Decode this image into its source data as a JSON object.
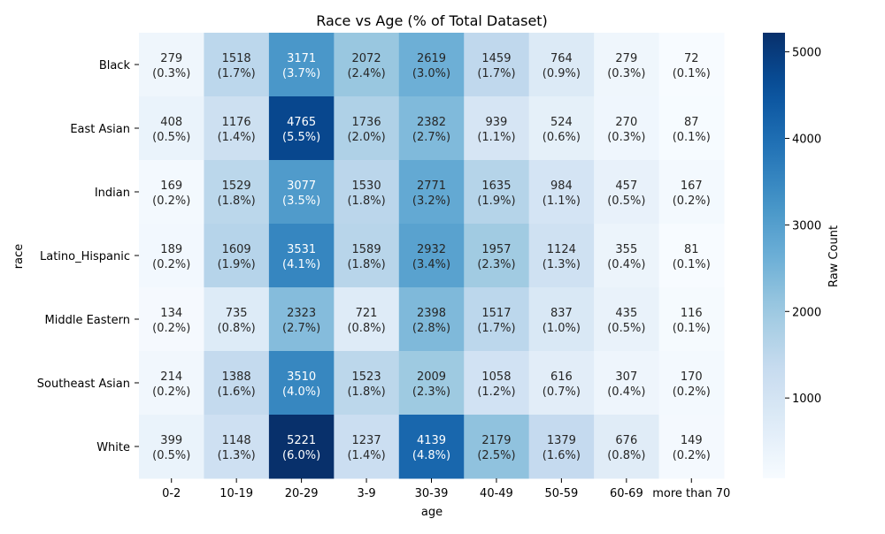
{
  "chart_data": {
    "type": "heatmap",
    "title": "Race vs Age (% of Total Dataset)",
    "xlabel": "age",
    "ylabel": "race",
    "x_categories": [
      "0-2",
      "10-19",
      "20-29",
      "3-9",
      "30-39",
      "40-49",
      "50-59",
      "60-69",
      "more than 70"
    ],
    "y_categories": [
      "Black",
      "East Asian",
      "Indian",
      "Latino_Hispanic",
      "Middle Eastern",
      "Southeast Asian",
      "White"
    ],
    "values": [
      [
        279,
        1518,
        3171,
        2072,
        2619,
        1459,
        764,
        279,
        72
      ],
      [
        408,
        1176,
        4765,
        1736,
        2382,
        939,
        524,
        270,
        87
      ],
      [
        169,
        1529,
        3077,
        1530,
        2771,
        1635,
        984,
        457,
        167
      ],
      [
        189,
        1609,
        3531,
        1589,
        2932,
        1957,
        1124,
        355,
        81
      ],
      [
        134,
        735,
        2323,
        721,
        2398,
        1517,
        837,
        435,
        116
      ],
      [
        214,
        1388,
        3510,
        1523,
        2009,
        1058,
        616,
        307,
        170
      ],
      [
        399,
        1148,
        5221,
        1237,
        4139,
        2179,
        1379,
        676,
        149
      ]
    ],
    "percent_labels": [
      [
        "(0.3%)",
        "(1.7%)",
        "(3.7%)",
        "(2.4%)",
        "(3.0%)",
        "(1.7%)",
        "(0.9%)",
        "(0.3%)",
        "(0.1%)"
      ],
      [
        "(0.5%)",
        "(1.4%)",
        "(5.5%)",
        "(2.0%)",
        "(2.7%)",
        "(1.1%)",
        "(0.6%)",
        "(0.3%)",
        "(0.1%)"
      ],
      [
        "(0.2%)",
        "(1.8%)",
        "(3.5%)",
        "(1.8%)",
        "(3.2%)",
        "(1.9%)",
        "(1.1%)",
        "(0.5%)",
        "(0.2%)"
      ],
      [
        "(0.2%)",
        "(1.9%)",
        "(4.1%)",
        "(1.8%)",
        "(3.4%)",
        "(2.3%)",
        "(1.3%)",
        "(0.4%)",
        "(0.1%)"
      ],
      [
        "(0.2%)",
        "(0.8%)",
        "(2.7%)",
        "(0.8%)",
        "(2.8%)",
        "(1.7%)",
        "(1.0%)",
        "(0.5%)",
        "(0.1%)"
      ],
      [
        "(0.2%)",
        "(1.6%)",
        "(4.0%)",
        "(1.8%)",
        "(2.3%)",
        "(1.2%)",
        "(0.7%)",
        "(0.4%)",
        "(0.2%)"
      ],
      [
        "(0.5%)",
        "(1.3%)",
        "(6.0%)",
        "(1.4%)",
        "(4.8%)",
        "(2.5%)",
        "(1.6%)",
        "(0.8%)",
        "(0.2%)"
      ]
    ],
    "colorbar": {
      "label": "Raw Count",
      "colormap": "Blues",
      "range": [
        72,
        5221
      ],
      "ticks": [
        1000,
        2000,
        3000,
        4000,
        5000
      ]
    },
    "grid": false
  }
}
